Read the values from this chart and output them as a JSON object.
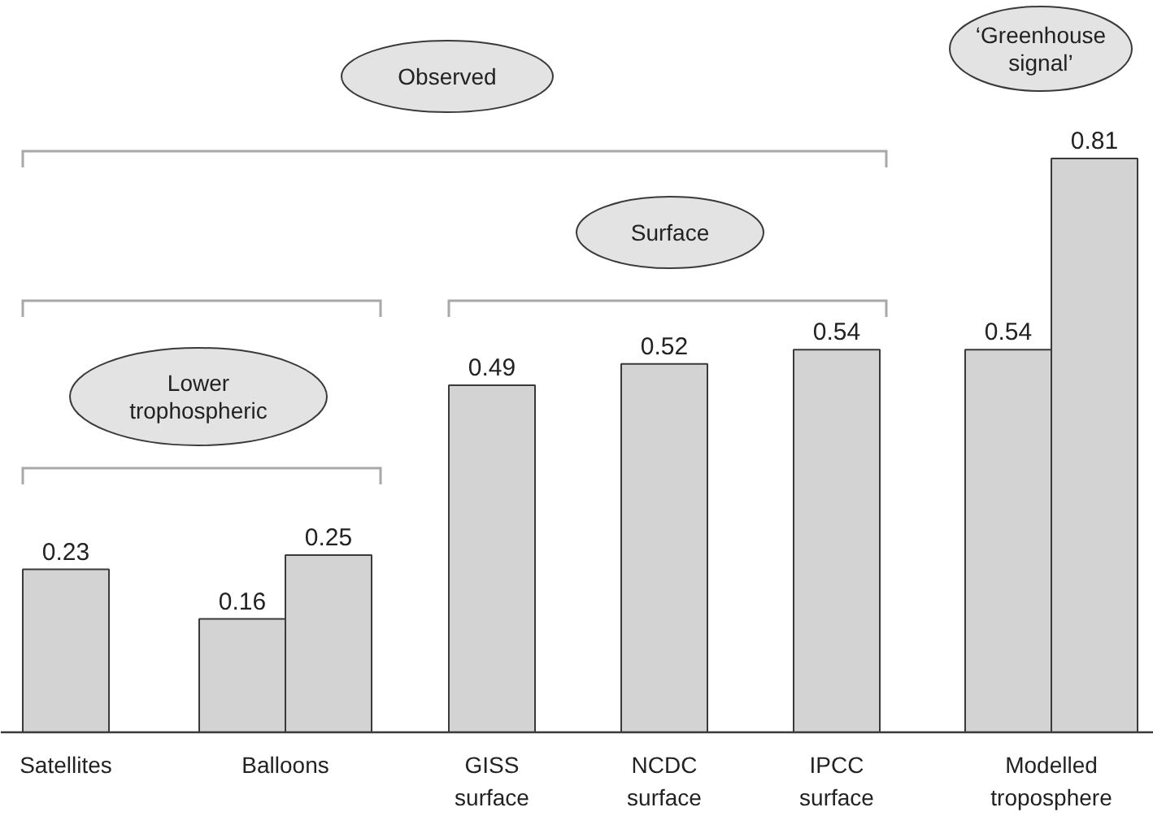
{
  "chart_data": {
    "type": "bar",
    "categories": [
      "Satellites",
      "Balloons",
      "GISS surface",
      "NCDC surface",
      "IPCC surface",
      "Modelled troposphere"
    ],
    "series": [
      {
        "color": "#d3d3d3",
        "values": [
          0.23,
          0.16,
          0.49,
          0.52,
          0.54,
          0.54
        ]
      },
      {
        "color": "#d3d3d3",
        "values": [
          null,
          0.25,
          null,
          null,
          null,
          0.81
        ]
      }
    ],
    "data_labels": true,
    "annotations": [
      "Observed",
      "Surface",
      "Lower trophospheric",
      "‘Greenhouse signal’"
    ]
  }
}
